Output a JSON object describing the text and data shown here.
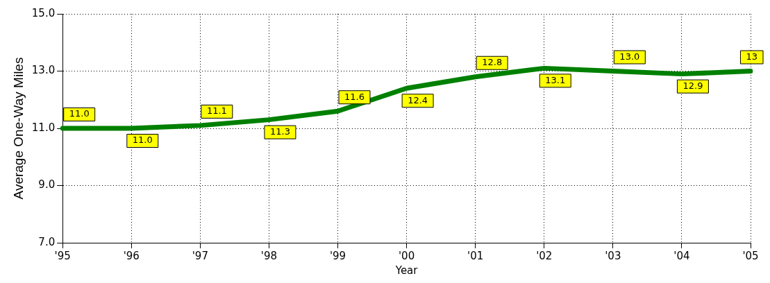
{
  "chart_data": {
    "type": "line",
    "xlabel": "Year",
    "ylabel": "Average One-Way Miles",
    "categories": [
      "'95",
      "'96",
      "'97",
      "'98",
      "'99",
      "'00",
      "'01",
      "'02",
      "'03",
      "'04",
      "'05"
    ],
    "series": [
      {
        "color": "#008000",
        "values": [
          11.0,
          11.0,
          11.1,
          11.3,
          11.6,
          12.4,
          12.8,
          13.1,
          13.0,
          12.9,
          13.0
        ],
        "value_labels": [
          "11.0",
          "11.0",
          "11.1",
          "11.3",
          "11.6",
          "12.4",
          "12.8",
          "13.1",
          "13.0",
          "12.9",
          "13"
        ]
      }
    ],
    "ylim": [
      7,
      15
    ],
    "yticks": [
      {
        "value": 7,
        "label": "7.0"
      },
      {
        "value": 9,
        "label": "9.0"
      },
      {
        "value": 11,
        "label": "11.0"
      },
      {
        "value": 13,
        "label": "13.0"
      },
      {
        "value": 15,
        "label": "15.0"
      }
    ],
    "grid": true,
    "legend": false,
    "marker": "none",
    "line_style": "solid"
  }
}
